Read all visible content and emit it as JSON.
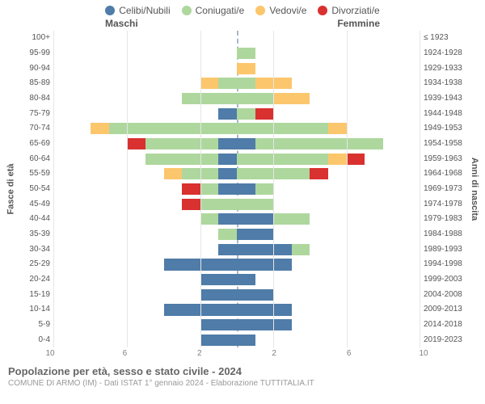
{
  "chart": {
    "type": "population-pyramid",
    "legend": [
      {
        "label": "Celibi/Nubili",
        "color": "#4f7ca8"
      },
      {
        "label": "Coniugati/e",
        "color": "#aed79d"
      },
      {
        "label": "Vedovi/e",
        "color": "#fcc66d"
      },
      {
        "label": "Divorziati/e",
        "color": "#d93030"
      }
    ],
    "sex_labels": {
      "male": "Maschi",
      "female": "Femmine"
    },
    "y_left_title": "Fasce di età",
    "y_right_title": "Anni di nascita",
    "age_groups": [
      "100+",
      "95-99",
      "90-94",
      "85-89",
      "80-84",
      "75-79",
      "70-74",
      "65-69",
      "60-64",
      "55-59",
      "50-54",
      "45-49",
      "40-44",
      "35-39",
      "30-34",
      "25-29",
      "20-24",
      "15-19",
      "10-14",
      "5-9",
      "0-4"
    ],
    "birth_years": [
      "≤ 1923",
      "1924-1928",
      "1929-1933",
      "1934-1938",
      "1939-1943",
      "1944-1948",
      "1949-1953",
      "1954-1958",
      "1959-1963",
      "1964-1968",
      "1969-1973",
      "1974-1978",
      "1979-1983",
      "1984-1988",
      "1989-1993",
      "1994-1998",
      "1999-2003",
      "2004-2008",
      "2009-2013",
      "2014-2018",
      "2019-2023"
    ],
    "x_max": 10,
    "x_ticks": [
      10,
      6,
      2,
      2,
      6,
      10
    ],
    "colors": {
      "celibi": "#4f7ca8",
      "coniugati": "#aed79d",
      "vedovi": "#fcc66d",
      "divorziati": "#d93030",
      "grid": "#e6e6e6",
      "centerline": "#a8b8c8",
      "background": "#ffffff",
      "text": "#555555",
      "muted": "#999999"
    },
    "data": [
      {
        "m": {
          "cel": 0,
          "con": 0,
          "ved": 0,
          "div": 0
        },
        "f": {
          "cel": 0,
          "con": 0,
          "ved": 0,
          "div": 0
        }
      },
      {
        "m": {
          "cel": 0,
          "con": 0,
          "ved": 0,
          "div": 0
        },
        "f": {
          "cel": 0,
          "con": 1,
          "ved": 0,
          "div": 0
        }
      },
      {
        "m": {
          "cel": 0,
          "con": 0,
          "ved": 0,
          "div": 0
        },
        "f": {
          "cel": 0,
          "con": 0,
          "ved": 1,
          "div": 0
        }
      },
      {
        "m": {
          "cel": 0,
          "con": 1,
          "ved": 1,
          "div": 0
        },
        "f": {
          "cel": 0,
          "con": 1,
          "ved": 2,
          "div": 0
        }
      },
      {
        "m": {
          "cel": 0,
          "con": 3,
          "ved": 0,
          "div": 0
        },
        "f": {
          "cel": 0,
          "con": 2,
          "ved": 2,
          "div": 0
        }
      },
      {
        "m": {
          "cel": 1,
          "con": 0,
          "ved": 0,
          "div": 0
        },
        "f": {
          "cel": 0,
          "con": 1,
          "ved": 0,
          "div": 1
        }
      },
      {
        "m": {
          "cel": 0,
          "con": 7,
          "ved": 1,
          "div": 0
        },
        "f": {
          "cel": 0,
          "con": 5,
          "ved": 1,
          "div": 0
        }
      },
      {
        "m": {
          "cel": 1,
          "con": 4,
          "ved": 0,
          "div": 1
        },
        "f": {
          "cel": 1,
          "con": 7,
          "ved": 0,
          "div": 0
        }
      },
      {
        "m": {
          "cel": 1,
          "con": 4,
          "ved": 0,
          "div": 0
        },
        "f": {
          "cel": 0,
          "con": 5,
          "ved": 1,
          "div": 1
        }
      },
      {
        "m": {
          "cel": 1,
          "con": 2,
          "ved": 1,
          "div": 0
        },
        "f": {
          "cel": 0,
          "con": 4,
          "ved": 0,
          "div": 1
        }
      },
      {
        "m": {
          "cel": 1,
          "con": 1,
          "ved": 0,
          "div": 1
        },
        "f": {
          "cel": 1,
          "con": 1,
          "ved": 0,
          "div": 0
        }
      },
      {
        "m": {
          "cel": 0,
          "con": 2,
          "ved": 0,
          "div": 1
        },
        "f": {
          "cel": 0,
          "con": 2,
          "ved": 0,
          "div": 0
        }
      },
      {
        "m": {
          "cel": 1,
          "con": 1,
          "ved": 0,
          "div": 0
        },
        "f": {
          "cel": 2,
          "con": 2,
          "ved": 0,
          "div": 0
        }
      },
      {
        "m": {
          "cel": 0,
          "con": 1,
          "ved": 0,
          "div": 0
        },
        "f": {
          "cel": 2,
          "con": 0,
          "ved": 0,
          "div": 0
        }
      },
      {
        "m": {
          "cel": 1,
          "con": 0,
          "ved": 0,
          "div": 0
        },
        "f": {
          "cel": 3,
          "con": 1,
          "ved": 0,
          "div": 0
        }
      },
      {
        "m": {
          "cel": 4,
          "con": 0,
          "ved": 0,
          "div": 0
        },
        "f": {
          "cel": 3,
          "con": 0,
          "ved": 0,
          "div": 0
        }
      },
      {
        "m": {
          "cel": 2,
          "con": 0,
          "ved": 0,
          "div": 0
        },
        "f": {
          "cel": 1,
          "con": 0,
          "ved": 0,
          "div": 0
        }
      },
      {
        "m": {
          "cel": 2,
          "con": 0,
          "ved": 0,
          "div": 0
        },
        "f": {
          "cel": 2,
          "con": 0,
          "ved": 0,
          "div": 0
        }
      },
      {
        "m": {
          "cel": 4,
          "con": 0,
          "ved": 0,
          "div": 0
        },
        "f": {
          "cel": 3,
          "con": 0,
          "ved": 0,
          "div": 0
        }
      },
      {
        "m": {
          "cel": 2,
          "con": 0,
          "ved": 0,
          "div": 0
        },
        "f": {
          "cel": 3,
          "con": 0,
          "ved": 0,
          "div": 0
        }
      },
      {
        "m": {
          "cel": 2,
          "con": 0,
          "ved": 0,
          "div": 0
        },
        "f": {
          "cel": 1,
          "con": 0,
          "ved": 0,
          "div": 0
        }
      }
    ],
    "title": "Popolazione per età, sesso e stato civile - 2024",
    "subtitle": "COMUNE DI ARMO (IM) - Dati ISTAT 1° gennaio 2024 - Elaborazione TUTTITALIA.IT"
  }
}
